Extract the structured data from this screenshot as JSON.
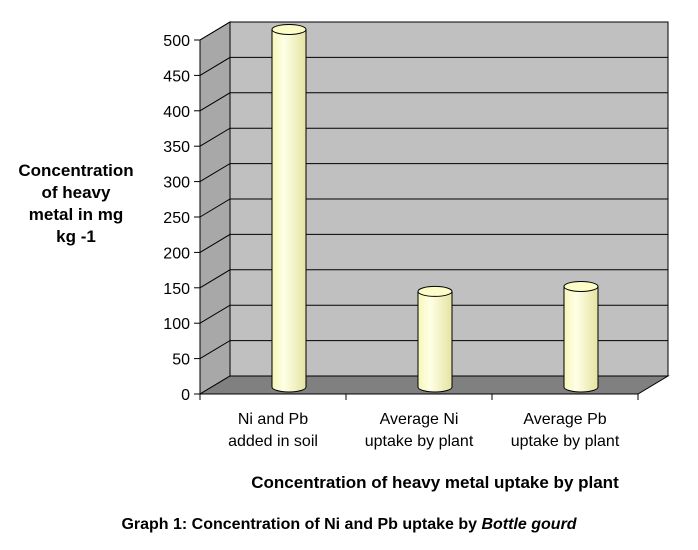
{
  "chart_data": {
    "type": "bar",
    "categories": [
      [
        "Ni and Pb",
        "added in soil"
      ],
      [
        "Average Ni",
        "uptake by plant"
      ],
      [
        "Average Pb",
        "uptake by plant"
      ]
    ],
    "values": [
      505,
      135,
      142
    ],
    "ylabel_lines": [
      "Concentration",
      "of heavy",
      "metal in mg",
      "kg -1"
    ],
    "xlabel": "Concentration of heavy metal uptake by plant",
    "ylim": [
      0,
      500
    ],
    "ytick_step": 50,
    "grid": true,
    "style": "3d-cylinder",
    "colors": {
      "wall": "#c0c0c0",
      "floor": "#808080",
      "bar": "#fdfdc8",
      "bar_edge": "#000000"
    }
  },
  "caption": {
    "prefix": "Graph 1: Concentration of Ni and Pb uptake by ",
    "italic": "Bottle gourd"
  }
}
